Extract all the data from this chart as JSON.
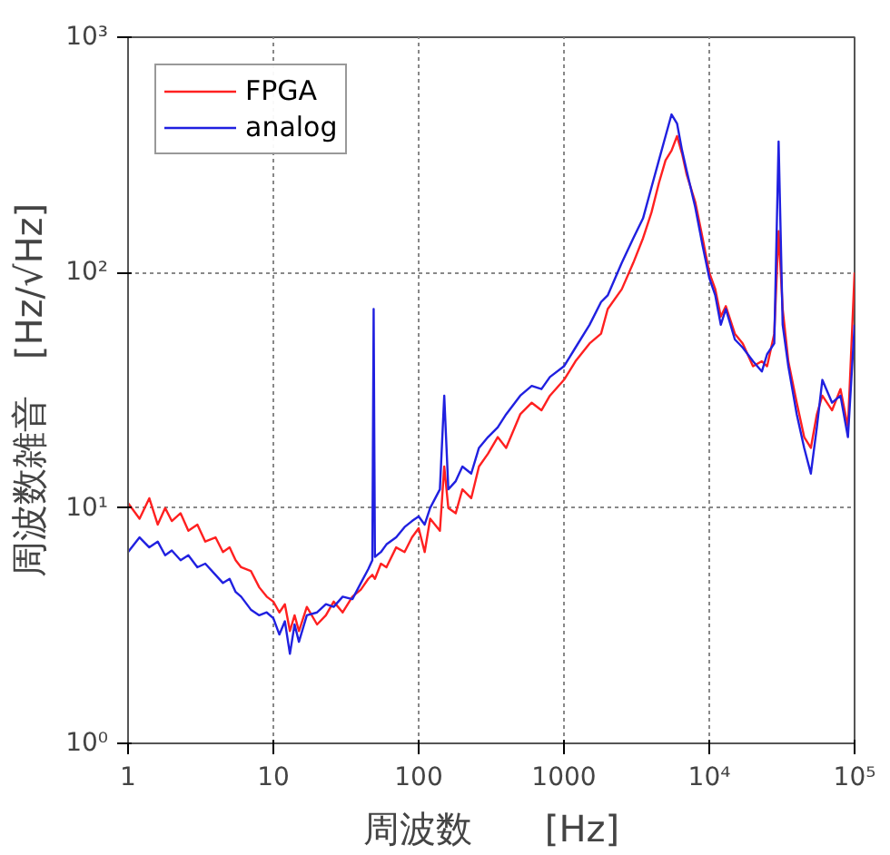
{
  "chart_data": {
    "type": "line",
    "xlabel": "周波数　　[Hz]",
    "ylabel": "周波数雑音　[Hz/√Hz]",
    "log": "xy",
    "grid": true,
    "legend": "top left",
    "line_style": "solid",
    "xlim": [
      1,
      100000
    ],
    "ylim": [
      1,
      1000
    ],
    "xticks": [
      1,
      10,
      100,
      1000,
      {
        "value": 10000,
        "label": "10⁴"
      },
      {
        "value": 100000,
        "label": "10⁵"
      }
    ],
    "yticks": [
      {
        "value": 1,
        "label": "10⁰"
      },
      {
        "value": 10,
        "label": "10¹"
      },
      {
        "value": 100,
        "label": "10²"
      },
      {
        "value": 1000,
        "label": "10³"
      }
    ],
    "x": [
      1,
      1.2,
      1.4,
      1.6,
      1.8,
      2,
      2.3,
      2.6,
      3,
      3.4,
      4,
      4.5,
      5,
      5.5,
      6,
      7,
      8,
      9,
      10,
      11,
      12,
      13,
      14,
      15,
      17,
      20,
      23,
      26,
      30,
      35,
      40,
      45,
      48,
      49,
      50,
      55,
      60,
      70,
      80,
      90,
      100,
      110,
      120,
      140,
      150,
      160,
      180,
      200,
      230,
      260,
      300,
      350,
      400,
      500,
      600,
      700,
      800,
      1000,
      1200,
      1500,
      1800,
      2000,
      2500,
      3000,
      3500,
      4000,
      4500,
      5000,
      5500,
      6000,
      6500,
      7000,
      8000,
      9000,
      10000,
      11000,
      12000,
      13000,
      15000,
      17000,
      20000,
      23000,
      25000,
      28000,
      30000,
      32000,
      35000,
      40000,
      45000,
      50000,
      55000,
      60000,
      70000,
      80000,
      90000,
      100000
    ],
    "series": [
      {
        "name": "FPGA",
        "color": "#ff2020",
        "values": [
          10.5,
          9,
          11,
          8.5,
          10,
          8.8,
          9.5,
          8,
          8.5,
          7.2,
          7.5,
          6.5,
          6.8,
          6.0,
          5.6,
          5.4,
          4.6,
          4.2,
          4.0,
          3.6,
          3.9,
          3.0,
          3.5,
          3.0,
          3.8,
          3.2,
          3.5,
          4.0,
          3.6,
          4.2,
          4.5,
          5.0,
          5.2,
          null,
          5.0,
          5.8,
          5.6,
          6.8,
          6.5,
          7.5,
          8.2,
          6.5,
          9,
          8,
          15,
          10,
          9.5,
          12,
          11,
          15,
          17,
          20,
          18,
          25,
          28,
          26,
          30,
          35,
          42,
          50,
          55,
          70,
          85,
          110,
          140,
          180,
          240,
          300,
          330,
          380,
          320,
          260,
          200,
          140,
          100,
          85,
          65,
          72,
          55,
          50,
          40,
          42,
          40,
          55,
          150,
          70,
          42,
          28,
          20,
          18,
          25,
          30,
          26,
          32,
          22,
          100
        ]
      },
      {
        "name": "analog",
        "color": "#2020e0",
        "values": [
          6.5,
          7.5,
          6.8,
          7.2,
          6.3,
          6.6,
          6.0,
          6.3,
          5.6,
          5.8,
          5.2,
          4.8,
          5.0,
          4.4,
          4.2,
          3.7,
          3.5,
          3.6,
          3.4,
          2.9,
          3.3,
          2.4,
          3.2,
          2.7,
          3.5,
          3.6,
          3.9,
          3.8,
          4.2,
          4.1,
          4.8,
          5.5,
          6.0,
          70,
          6.2,
          6.5,
          7.0,
          7.5,
          8.3,
          8.8,
          9.2,
          8.5,
          10,
          12,
          30,
          12,
          13,
          15,
          14,
          18,
          20,
          22,
          25,
          30,
          33,
          32,
          36,
          40,
          48,
          60,
          75,
          80,
          110,
          140,
          170,
          230,
          300,
          380,
          470,
          430,
          330,
          270,
          190,
          130,
          95,
          80,
          60,
          70,
          52,
          48,
          42,
          38,
          45,
          50,
          360,
          60,
          40,
          25,
          18,
          14,
          22,
          35,
          28,
          30,
          20,
          60
        ]
      }
    ]
  }
}
